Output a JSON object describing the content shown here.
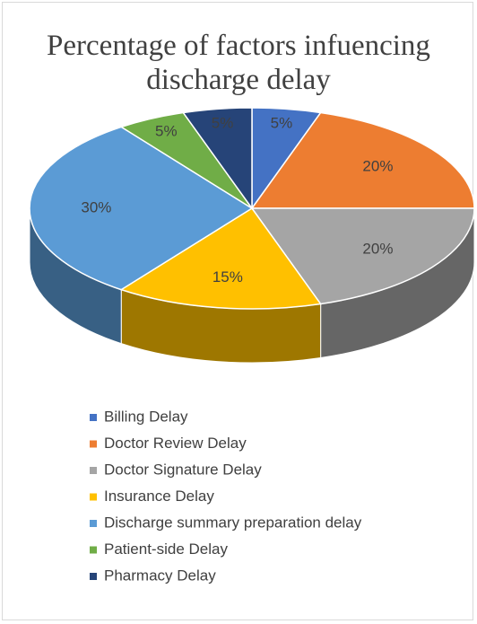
{
  "chart_data": {
    "type": "pie",
    "title": "Percentage of factors infuencing discharge delay",
    "categories": [
      "Billing Delay",
      "Doctor Review Delay",
      "Doctor Signature Delay",
      "Insurance Delay",
      "Discharge summary preparation delay",
      "Patient-side Delay",
      "Pharmacy Delay"
    ],
    "values": [
      5,
      20,
      20,
      15,
      30,
      5,
      5
    ],
    "value_labels": [
      "5%",
      "20%",
      "20%",
      "15%",
      "30%",
      "5%",
      "5%"
    ],
    "colors": [
      "#4472c4",
      "#ed7d31",
      "#a5a5a5",
      "#ffc000",
      "#5b9bd5",
      "#70ad47",
      "#264478"
    ],
    "legend": "bottom"
  }
}
